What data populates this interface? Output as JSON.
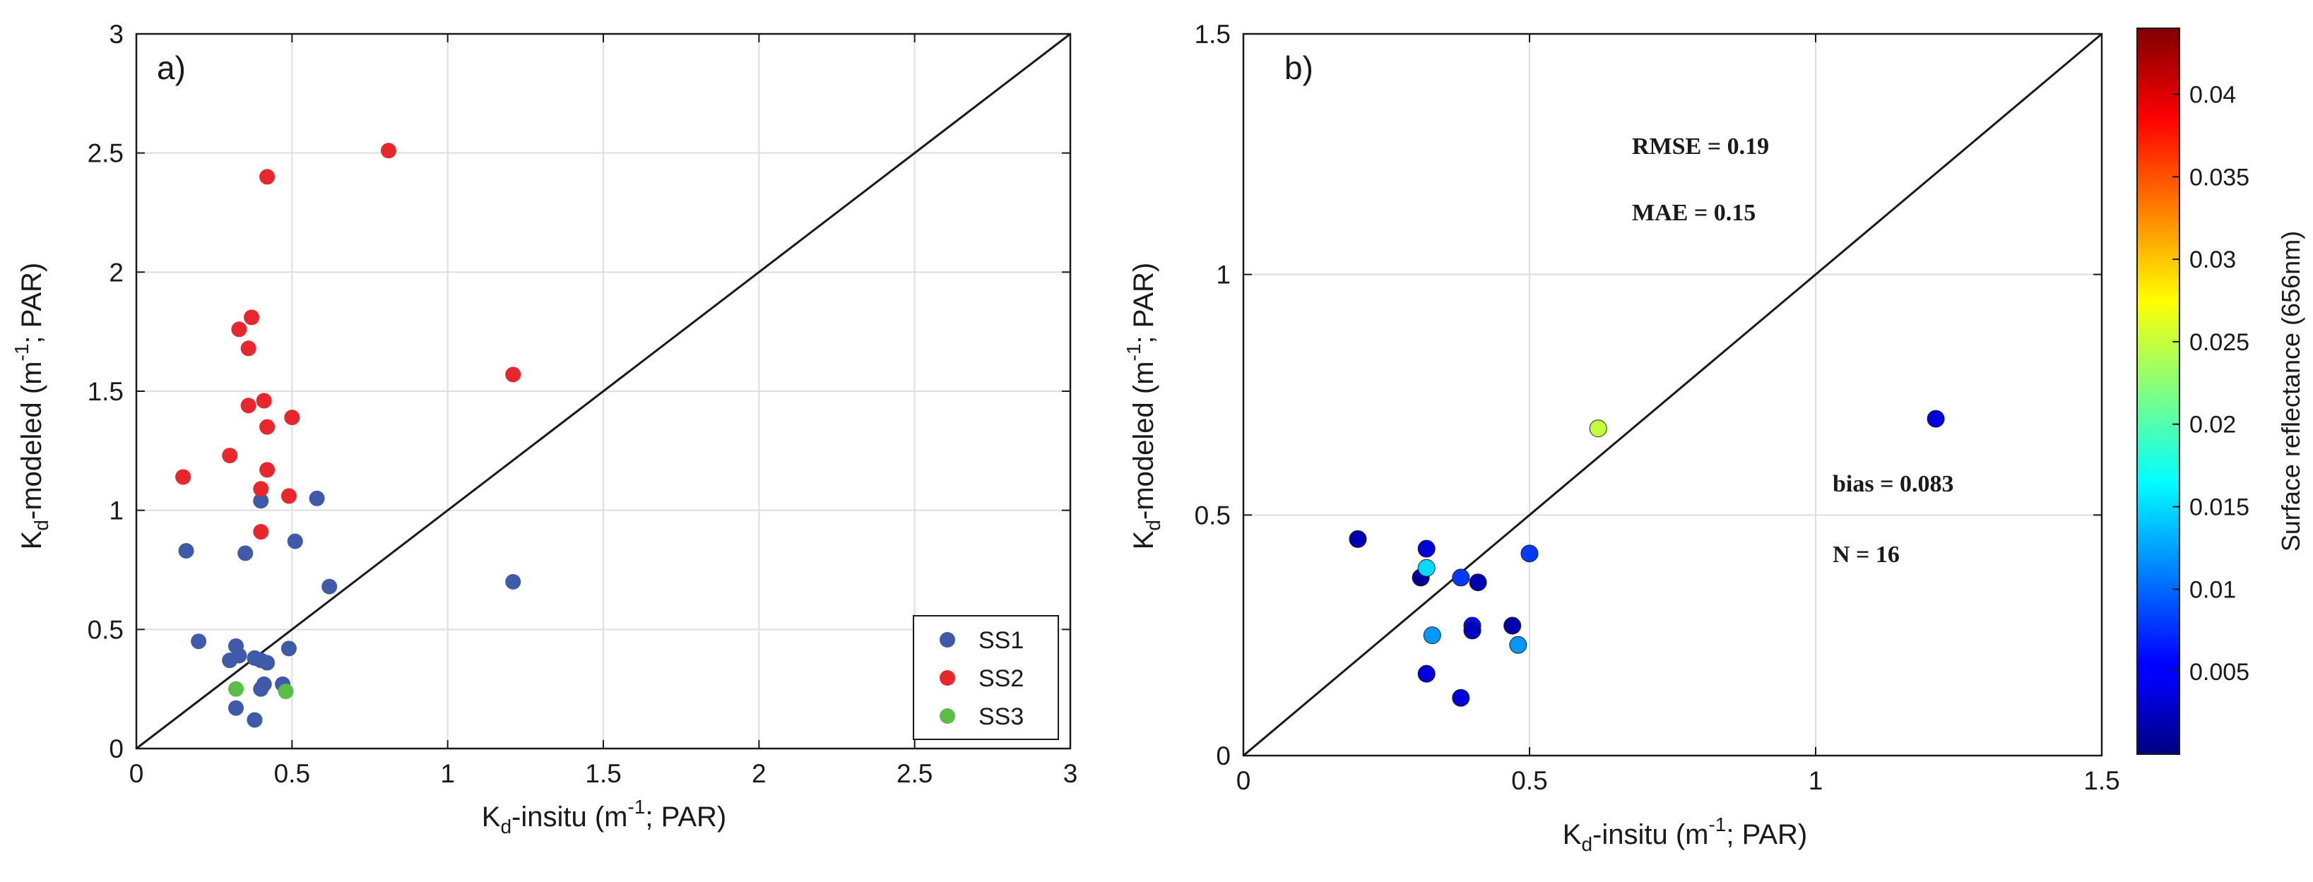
{
  "chart_data": [
    {
      "type": "scatter",
      "panel_label": "a)",
      "xlabel": {
        "base": "K",
        "sub": "d",
        "text": "-insitu (m",
        "sup": "-1",
        "tail": "; PAR)"
      },
      "ylabel": {
        "base": "K",
        "sub": "d",
        "text": "-modeled (m",
        "sup": "-1",
        "tail": "; PAR)"
      },
      "xlim": [
        0,
        3
      ],
      "ylim": [
        0,
        3
      ],
      "xticks": [
        "0",
        "0.5",
        "1",
        "1.5",
        "2",
        "2.5",
        "3"
      ],
      "yticks": [
        "0",
        "0.5",
        "1",
        "1.5",
        "2",
        "2.5",
        "3"
      ],
      "grid": true,
      "reference_line": "1:1",
      "legend_position": "bottom-right",
      "series": [
        {
          "name": "SS1",
          "color": "#3f5aa8",
          "points": [
            [
              0.16,
              0.83
            ],
            [
              0.2,
              0.45
            ],
            [
              0.3,
              0.37
            ],
            [
              0.32,
              0.43
            ],
            [
              0.33,
              0.39
            ],
            [
              0.32,
              0.17
            ],
            [
              0.35,
              0.82
            ],
            [
              0.38,
              0.38
            ],
            [
              0.38,
              0.12
            ],
            [
              0.4,
              0.37
            ],
            [
              0.41,
              0.27
            ],
            [
              0.4,
              0.25
            ],
            [
              0.42,
              0.36
            ],
            [
              0.4,
              1.04
            ],
            [
              0.47,
              0.27
            ],
            [
              0.49,
              0.42
            ],
            [
              0.51,
              0.87
            ],
            [
              0.58,
              1.05
            ],
            [
              0.62,
              0.68
            ],
            [
              1.21,
              0.7
            ]
          ]
        },
        {
          "name": "SS2",
          "color": "#e8262b",
          "points": [
            [
              0.15,
              1.14
            ],
            [
              0.3,
              1.23
            ],
            [
              0.33,
              1.76
            ],
            [
              0.36,
              1.68
            ],
            [
              0.37,
              1.81
            ],
            [
              0.36,
              1.44
            ],
            [
              0.41,
              1.46
            ],
            [
              0.42,
              1.35
            ],
            [
              0.42,
              1.17
            ],
            [
              0.4,
              1.09
            ],
            [
              0.4,
              0.91
            ],
            [
              0.49,
              1.06
            ],
            [
              0.5,
              1.39
            ],
            [
              0.42,
              2.4
            ],
            [
              0.81,
              2.51
            ],
            [
              1.21,
              1.57
            ]
          ]
        },
        {
          "name": "SS3",
          "color": "#5bbd45",
          "points": [
            [
              0.32,
              0.25
            ],
            [
              0.48,
              0.24
            ]
          ]
        }
      ]
    },
    {
      "type": "scatter",
      "panel_label": "b)",
      "xlabel": {
        "base": "K",
        "sub": "d",
        "text": "-insitu (m",
        "sup": "-1",
        "tail": "; PAR)"
      },
      "ylabel": {
        "base": "K",
        "sub": "d",
        "text": "-modeled (m",
        "sup": "-1",
        "tail": "; PAR)"
      },
      "xlim": [
        0,
        1.5
      ],
      "ylim": [
        0,
        1.5
      ],
      "xticks": [
        "0",
        "0.5",
        "1",
        "1.5"
      ],
      "yticks": [
        "0",
        "0.5",
        "1",
        "1.5"
      ],
      "grid": true,
      "reference_line": "1:1",
      "annotations": {
        "rmse": "RMSE = 0.19",
        "mae": "MAE = 0.15",
        "bias": "bias = 0.083",
        "n": "N = 16"
      },
      "colorbar": {
        "label": "Surface reflectance (656nm)",
        "range": [
          0.0,
          0.044
        ],
        "ticks": [
          "0.005",
          "0.01",
          "0.015",
          "0.02",
          "0.025",
          "0.03",
          "0.035",
          "0.04"
        ],
        "colormap": "jet"
      },
      "points": [
        {
          "x": 0.2,
          "y": 0.45,
          "c": 0.002
        },
        {
          "x": 0.31,
          "y": 0.37,
          "c": 0.001
        },
        {
          "x": 0.32,
          "y": 0.43,
          "c": 0.004
        },
        {
          "x": 0.32,
          "y": 0.39,
          "c": 0.015
        },
        {
          "x": 0.32,
          "y": 0.17,
          "c": 0.004
        },
        {
          "x": 0.33,
          "y": 0.25,
          "c": 0.012
        },
        {
          "x": 0.38,
          "y": 0.12,
          "c": 0.004
        },
        {
          "x": 0.38,
          "y": 0.37,
          "c": 0.008
        },
        {
          "x": 0.4,
          "y": 0.27,
          "c": 0.006
        },
        {
          "x": 0.4,
          "y": 0.26,
          "c": 0.003
        },
        {
          "x": 0.41,
          "y": 0.36,
          "c": 0.002
        },
        {
          "x": 0.47,
          "y": 0.27,
          "c": 0.002
        },
        {
          "x": 0.48,
          "y": 0.23,
          "c": 0.012
        },
        {
          "x": 0.5,
          "y": 0.42,
          "c": 0.008
        },
        {
          "x": 0.62,
          "y": 0.68,
          "c": 0.025
        },
        {
          "x": 1.21,
          "y": 0.7,
          "c": 0.004
        }
      ]
    }
  ]
}
